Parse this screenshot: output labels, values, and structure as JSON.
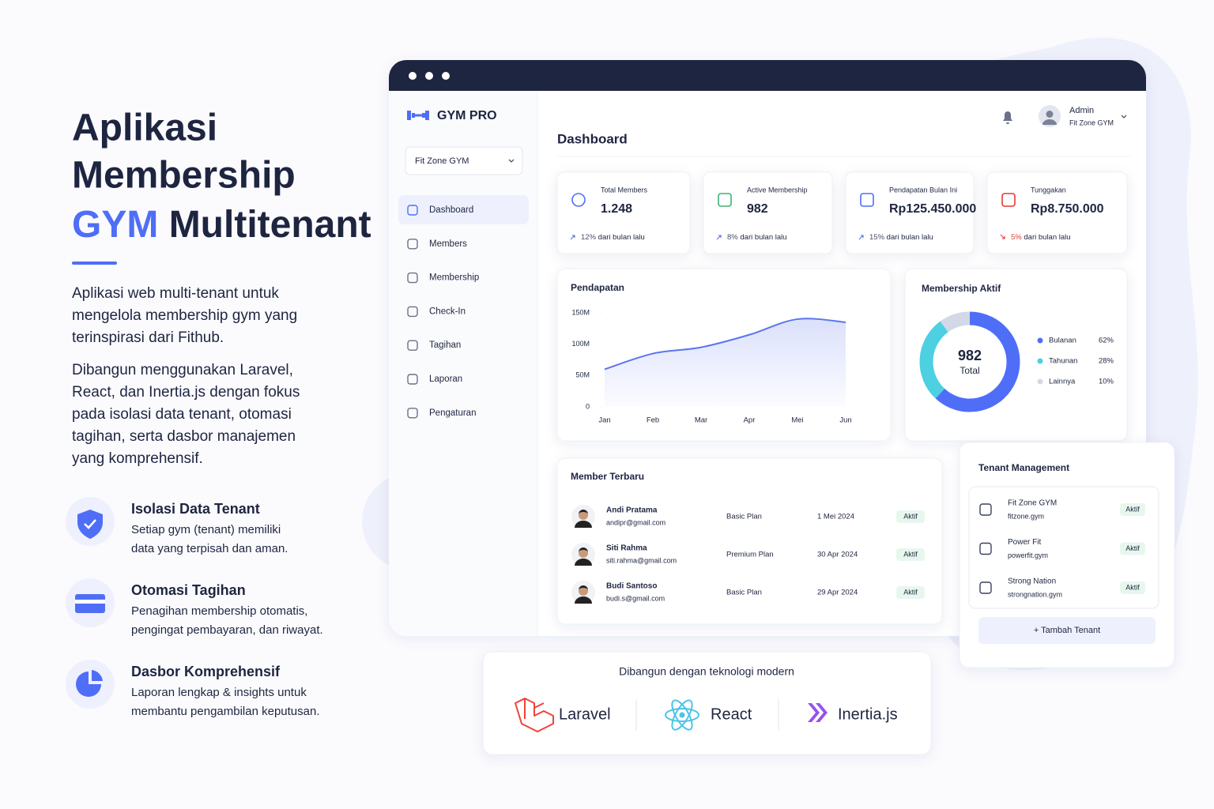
{
  "hero": {
    "title": [
      "Aplikasi",
      "Membership"
    ],
    "highlight": "GYM",
    "title_rest": "Multitenant",
    "paragraphs": [
      [
        "Aplikasi web multi-tenant untuk",
        "mengelola membership gym yang",
        "terinspirasi dari Fithub."
      ],
      [
        "Dibangun menggunakan Laravel,",
        "React, dan Inertia.js dengan fokus",
        "pada isolasi data tenant, otomasi",
        "tagihan, serta dasbor manajemen",
        "yang komprehensif."
      ]
    ],
    "features": [
      {
        "title": "Isolasi Data Tenant",
        "description": [
          "Setiap gym (tenant) memiliki",
          "data yang terpisah dan aman."
        ]
      },
      {
        "title": "Otomasi Tagihan",
        "description": [
          "Penagihan membership otomatis,",
          "pengingat pembayaran, dan riwayat."
        ]
      },
      {
        "title": "Dasbor Komprehensif",
        "description": [
          "Laporan lengkap & insights untuk",
          "membantu pengambilan keputusan."
        ]
      }
    ]
  },
  "dashboard": {
    "brand": "GYM PRO",
    "tenant_select": "Fit Zone GYM",
    "menu": [
      "Dashboard",
      "Members",
      "Membership",
      "Check-In",
      "Tagihan",
      "Laporan",
      "Pengaturan"
    ],
    "page_title": "Dashboard",
    "user": {
      "name": "Admin",
      "tenant": "Fit Zone GYM"
    },
    "stats": [
      {
        "label": "Total Members",
        "value": "1.248",
        "change": "12%",
        "change_text": "dari bulan lalu"
      },
      {
        "label": "Active Membership",
        "value": "982",
        "change": "8%",
        "change_text": "dari bulan lalu"
      },
      {
        "label": "Pendapatan Bulan Ini",
        "value": "Rp125.450.000",
        "change": "15%",
        "change_text": "dari bulan lalu"
      },
      {
        "label": "Tunggakan",
        "value": "Rp8.750.000",
        "change": "5%",
        "change_text": "dari bulan lalu"
      }
    ],
    "members": {
      "title": "Member Terbaru",
      "rows": [
        {
          "name": "Andi Pratama",
          "email": "andipr@gmail.com",
          "plan": "Basic Plan",
          "date": "1 Mei 2024",
          "status": "Aktif"
        },
        {
          "name": "Siti Rahma",
          "email": "siti.rahma@gmail.com",
          "plan": "Premium Plan",
          "date": "30 Apr 2024",
          "status": "Aktif"
        },
        {
          "name": "Budi Santoso",
          "email": "budi.s@gmail.com",
          "plan": "Basic Plan",
          "date": "29 Apr 2024",
          "status": "Aktif"
        }
      ]
    },
    "tenants": {
      "title": "Tenant Management",
      "rows": [
        {
          "name": "Fit Zone GYM",
          "domain": "fitzone.gym",
          "status": "Aktif"
        },
        {
          "name": "Power Fit",
          "domain": "powerfit.gym",
          "status": "Aktif"
        },
        {
          "name": "Strong Nation",
          "domain": "strongnation.gym",
          "status": "Aktif"
        }
      ],
      "button": "+ Tambah Tenant"
    }
  },
  "tech": {
    "title": "Dibangun dengan teknologi modern",
    "items": [
      "Laravel",
      "React",
      "Inertia.js"
    ]
  },
  "chart_data": [
    {
      "type": "line",
      "title": "Pendapatan",
      "categories": [
        "Jan",
        "Feb",
        "Mar",
        "Apr",
        "Mei",
        "Jun"
      ],
      "values": [
        60000000,
        85000000,
        95000000,
        115000000,
        140000000,
        135000000
      ],
      "color": "#5b74f0",
      "ylim": [
        0,
        150000000
      ],
      "yticks": [
        0,
        {
          "value": 50000000,
          "label": "50M"
        },
        {
          "value": 100000000,
          "label": "100M"
        },
        {
          "value": 150000000,
          "label": "150M"
        }
      ]
    },
    {
      "type": "pie",
      "title": "Membership Aktif",
      "categories": [
        "Bulanan",
        "Tahunan",
        "Lainnya"
      ],
      "values": [
        62,
        28,
        10
      ],
      "value_labels": [
        "62%",
        "28%",
        "10%"
      ],
      "colors": [
        "#4f6ef7",
        "#4dd0e1",
        "#d3d8e6"
      ],
      "center_value": "982",
      "center_label": "Total"
    }
  ]
}
